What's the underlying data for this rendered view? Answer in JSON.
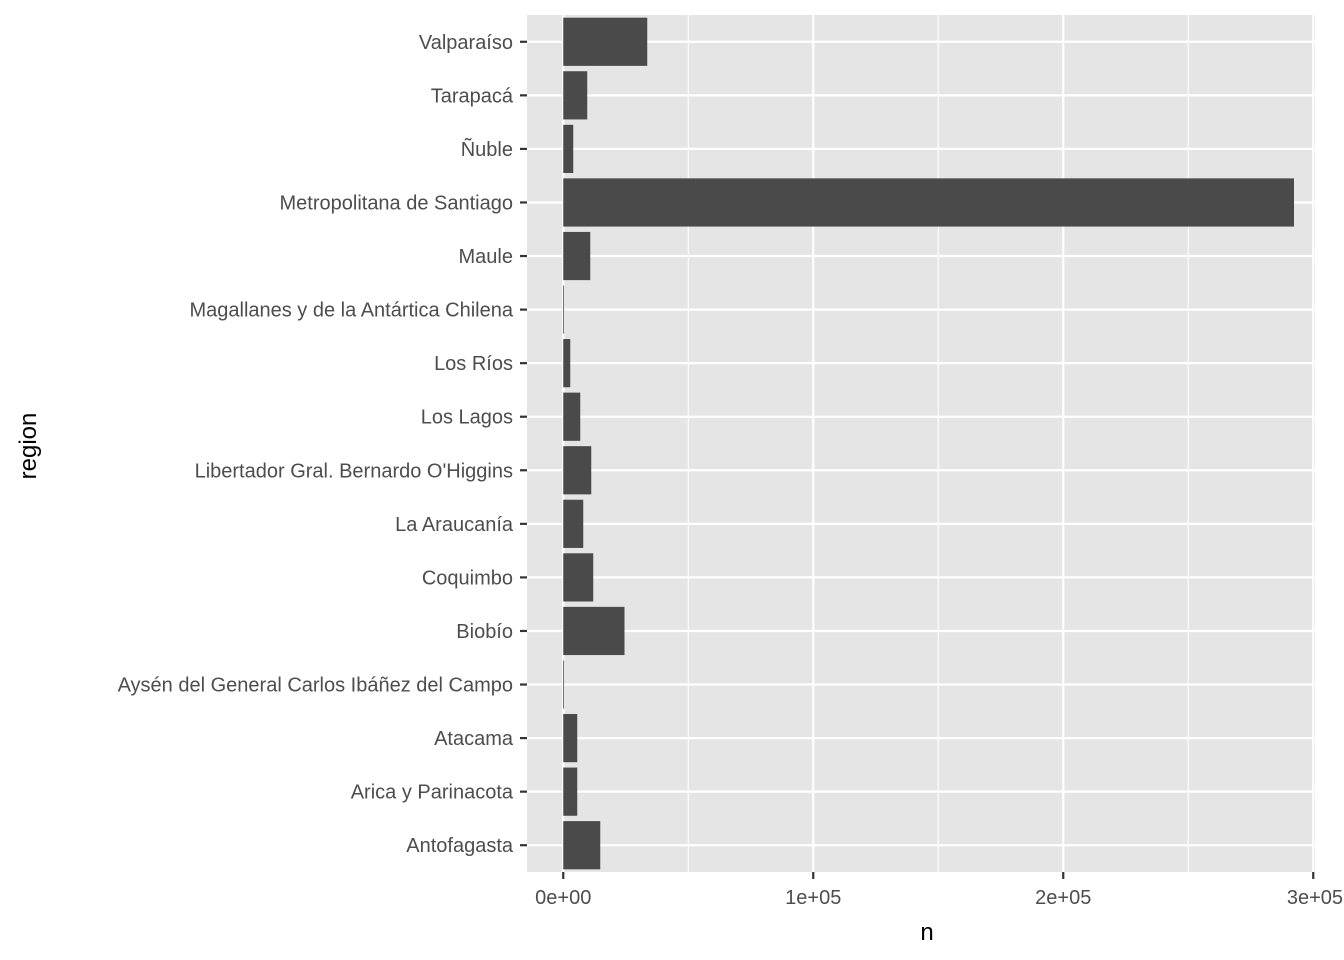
{
  "chart_data": {
    "type": "bar",
    "orientation": "horizontal",
    "xlabel": "n",
    "ylabel": "region",
    "categories": [
      "Antofagasta",
      "Arica y Parinacota",
      "Atacama",
      "Aysén del General Carlos Ibáñez del Campo",
      "Biobío",
      "Coquimbo",
      "La Araucanía",
      "Libertador Gral. Bernardo O'Higgins",
      "Los Lagos",
      "Los Ríos",
      "Magallanes y de la Antártica Chilena",
      "Maule",
      "Metropolitana de Santiago",
      "Ñuble",
      "Tarapacá",
      "Valparaíso"
    ],
    "values": [
      14800,
      5600,
      5600,
      300,
      24500,
      12000,
      8000,
      11200,
      6800,
      2800,
      300,
      10800,
      292300,
      4000,
      9600,
      33600
    ],
    "xlim": [
      -14500,
      300700
    ],
    "xticks": [
      0,
      100000,
      200000,
      300000
    ],
    "xtick_labels": [
      "0e+00",
      "1e+05",
      "2e+05",
      "3e+05"
    ],
    "grid": true,
    "legend": "none",
    "colors": {
      "bar": "#4a4a4a",
      "panel": "#e5e5e5",
      "grid": "#ffffff"
    }
  }
}
